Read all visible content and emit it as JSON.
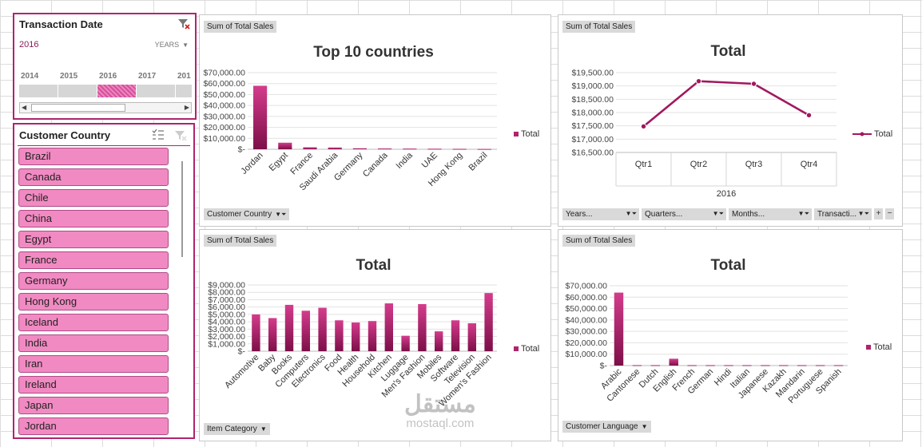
{
  "colors": {
    "accent": "#b0246e",
    "slicer_button": "#f18ac2",
    "line": "#a0195f"
  },
  "date_slicer": {
    "title": "Transaction  Date",
    "selected": "2016",
    "level": "YEARS",
    "years": [
      "2014",
      "2015",
      "2016",
      "2017",
      "201"
    ],
    "selected_year_index": 2,
    "clear_icon": "filter-clear-icon"
  },
  "country_slicer": {
    "title": "Customer Country",
    "items": [
      "Brazil",
      "Canada",
      "Chile",
      "China",
      "Egypt",
      "France",
      "Germany",
      "Hong Kong",
      "Iceland",
      "India",
      "Iran",
      "Ireland",
      "Japan",
      "Jordan"
    ],
    "multiselect_icon": "multiselect-icon",
    "clear_icon": "filter-clear-icon"
  },
  "chart1": {
    "value_button": "Sum of Total Sales",
    "axis_button": "Customer Country",
    "legend": "Total",
    "chart_data": {
      "type": "bar",
      "title": "Top 10 countries",
      "categories": [
        "Jordan",
        "Egypt",
        "France",
        "Saudi Arabia",
        "Germany",
        "Canada",
        "India",
        "UAE",
        "Hong Kong",
        "Brazil"
      ],
      "values": [
        58000,
        6000,
        1800,
        1600,
        900,
        700,
        600,
        500,
        400,
        300
      ],
      "ylim": [
        0,
        70000
      ],
      "yticks": [
        "$-",
        "$10,000.00",
        "$20,000.00",
        "$30,000.00",
        "$40,000.00",
        "$50,000.00",
        "$60,000.00",
        "$70,000.00"
      ],
      "legend_position": "right"
    }
  },
  "chart2": {
    "value_button": "Sum of Total Sales",
    "legend": "Total",
    "axis_buttons": [
      "Years...",
      "Quarters...",
      "Months...",
      "Transacti..."
    ],
    "chart_data": {
      "type": "line",
      "title": "Total",
      "categories": [
        "Qtr1",
        "Qtr2",
        "Qtr3",
        "Qtr4"
      ],
      "group_label": "2016",
      "values": [
        17480,
        19180,
        19080,
        17900
      ],
      "ylim": [
        16500,
        19500
      ],
      "yticks": [
        "$16,500.00",
        "$17,000.00",
        "$17,500.00",
        "$18,000.00",
        "$18,500.00",
        "$19,000.00",
        "$19,500.00"
      ],
      "legend_position": "right"
    }
  },
  "chart3": {
    "value_button": "Sum of Total Sales",
    "axis_button": "Item Category",
    "legend": "Total",
    "chart_data": {
      "type": "bar",
      "title": "Total",
      "categories": [
        "Automotive",
        "Baby",
        "Books",
        "Computers",
        "Electronics",
        "Food",
        "Health",
        "Household",
        "Kitchen",
        "Luggage",
        "Men's Fashion",
        "Mobiles",
        "Software",
        "Television",
        "Women's Fashion"
      ],
      "values": [
        5000,
        4500,
        6300,
        5500,
        5900,
        4200,
        3900,
        4100,
        6500,
        2100,
        6400,
        2700,
        4200,
        3800,
        7900
      ],
      "ylim": [
        0,
        9000
      ],
      "yticks": [
        "$-",
        "$1,000.00",
        "$2,000.00",
        "$3,000.00",
        "$4,000.00",
        "$5,000.00",
        "$6,000.00",
        "$7,000.00",
        "$8,000.00",
        "$9,000.00"
      ],
      "legend_position": "right"
    }
  },
  "chart4": {
    "value_button": "Sum of Total Sales",
    "axis_button": "Customer Language",
    "legend": "Total",
    "chart_data": {
      "type": "bar",
      "title": "Total",
      "categories": [
        "Arabic",
        "Cantonese",
        "Dutch",
        "English",
        "French",
        "German",
        "Hindi",
        "Italian",
        "Japanese",
        "Kazakh",
        "Mandarin",
        "Portuguese",
        "Spanish"
      ],
      "values": [
        64000,
        400,
        400,
        6000,
        400,
        400,
        400,
        400,
        400,
        400,
        400,
        400,
        400
      ],
      "ylim": [
        0,
        70000
      ],
      "yticks": [
        "$-",
        "$10,000.00",
        "$20,000.00",
        "$30,000.00",
        "$40,000.00",
        "$50,000.00",
        "$60,000.00",
        "$70,000.00"
      ],
      "legend_position": "right"
    }
  },
  "watermark": {
    "arabic": "مستقل",
    "latin": "mostaql.com"
  }
}
